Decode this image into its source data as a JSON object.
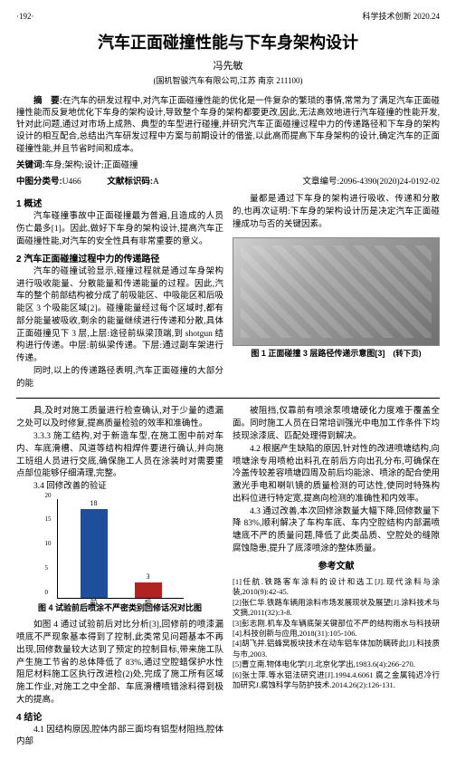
{
  "header": {
    "page": "·192·",
    "journal": "科学技术创新 2020.24"
  },
  "title": "汽车正面碰撞性能与下车身架构设计",
  "author": "冯先敏",
  "affiliation": "(国机智骏汽车有限公司,江苏 南京 211100)",
  "abstract_label": "摘　要:",
  "abstract": "在汽车的研发过程中,对汽车正面碰撞性能的优化是一件复杂的繁琐的事情,常常为了满足汽车正面碰撞性能而反复地优化下车身的架构设计,导致整个车身的架构都要更改,因此,无法高效地进行汽车碰撞的性能开发,针对此问题,通过对市场上成熟、典型的车型进行碰撞,并研究汽车正面碰撞过程中力的传递路径和下车身的架构设计的相互配合,总结出汽车研发过程中方案与前期设计的借鉴,以此高而提高下车身架构的设计,确定汽车的正面碰撞性能,并且节省时间和成本。",
  "keywords_label": "关键词:",
  "keywords": "车身;架构;设计;正面碰撞",
  "classification": {
    "class_label": "中图分类号:",
    "class_value": "U466",
    "doc_label": "文献标识码:",
    "doc_value": "A",
    "article_label": "",
    "article_value": "文章编号:2096-4390(2020)24-0192-02"
  },
  "left_col": {
    "sec1_title": "1 概述",
    "sec1_p1": "汽车碰撞事故中正面碰撞最为普遍,且造成的人员伤亡最多[1]。因此,做好下车身的架构设计,提高汽车正面碰撞性能,对汽车的安全性具有非常重要的意义。",
    "sec2_title": "2 汽车正面碰撞过程中力的传递路径",
    "sec2_p1": "汽车的碰撞试验显示,碰撞过程就是通过车身架构进行吸收能量、分散能量和传递能量的过程。因此,汽车的整个前部结构被分成了前吸能区、中吸能区和后吸能区 3 个吸能区域[2]。碰撞能量经过每个区域时,都有部分能量被吸收,剩余的能量继续进行传递和分散,具体正面碰撞见下 3 层,上层:途径前纵梁顶端,到 shotgun 结构进行传递。中层:前纵梁传递。下层:通过副车架进行传递。",
    "sec2_p2": "同时,以上的传递路径表明,汽车正面碰撞的大部分的能"
  },
  "right_col": {
    "p1": "量都是通过下车身的架构进行吸收、传递和分散的,也再次证明:下车身的架构设计历是决定汽车正面碰撞成功与否的关键因素。",
    "fig1_caption": "图 1 正面碰撞 3 层路径传递示意图[3]",
    "turn": "(转下页)"
  },
  "lower_left": {
    "p1": "具,及时对施工质量进行检查确认,对于少量的遗漏之处可以及时修复,提高质量检验的效率和准确性。",
    "sec333": "3.3.3 施工结构,对于新造车型,在施工图中前对车内、车底滑槽、风道等结构相焊件要进行确认,并向施工班组人员进行交底,确保施工人员在涂装时对需要重点部位能够仔细清理,完整。",
    "sec34": "3.4 回修改善的验证",
    "chart": {
      "type": "bar",
      "categories": [
        "前",
        "后"
      ],
      "values": [
        18,
        3
      ],
      "bar_colors": [
        "#1f4e9c",
        "#b22222"
      ],
      "ylabel": "喷涂回修数量/处",
      "ylim": [
        0,
        20
      ],
      "ytick_step": 5,
      "background_color": "#ffffff"
    },
    "fig4_caption": "图 4 试验前后喷涂不严密类别回修话况对比图",
    "p2": "如图 4 通过试验前后对比分析[3],回修前的喷漆漏喷底不严现象基本得到了控制,此类常见问题基本不再出现,回修数量较大达到了预定的控制目标,带来施工队产生施工节省的总体降低了 83%,通过空腔蜡保护水性阻尼材料施工区执行改进检(2)处,完成了施工所有区域施工作业,对施工之中全部、车底滑槽喷错涂料得到极大的提高。",
    "sec4_title": "4 结论",
    "sec41": "4.1 因结构原因,腔体内部三面均有铝型材阻挡,腔体内部"
  },
  "lower_right": {
    "p1": "被阻挡,仅靠前有喷涂泵喷塘硬化力度难于覆盖全面。同时施工人员在日常培训强光中电加工作条件下均技现涂漆底、匹配处理得到解决。",
    "sec42": "4.2 根据产生缺陷的原因,针对性的改进喷塘结构,向喷塘涂专用喷枪出料孔在前后方向出孔分布,可确保在冷盖传较差容喷塘四周及前后均能涂、喷涂的配合使用激光手电和喇叭镜的质量检测的可达性,使同时特殊构出料位进行特定宽,提高向检测的准确性和内效率。",
    "sec43": "4.3 通过改善,本次回修涂数量大幅下降,回修数量下降 83%,顺利解决了车构车底、车内空腔结构内部漏喷塘底不严的质量问题,降低了此类品质、空腔处的缝隙腐蚀隐患,提升了底漆喷涂的整体质量。",
    "ref_title": "参考文献",
    "refs": [
      "[1]任航.铁路客车涂料的设计和选工[J].现代涂料与涂装,2010(9):42-45.",
      "[2]张仁华.铁路车辆用涂料市场发展现状及展望[J].涂料技术与文摘,2011(32):3-8.",
      "[3]彭志刚.机车及车辆底架关键部位不严的结构雨水与科技研[4].科技创新与应用,2018(31):105-106.",
      "[4]胡飞并.铝蜂窝板块技术在动车铝车体加防瞒砖此[J].科技质与市,2003.",
      "[5]曹立南.物体电化学[J].北京化学出,1983.6(4):266-270.",
      "[6]张士萍.等水铝法研究进[J].1994.4.6061 腐之金属钝迟冷行加研究J.腐蚀科学与防护技术.2014.26(2):126-131."
    ]
  }
}
